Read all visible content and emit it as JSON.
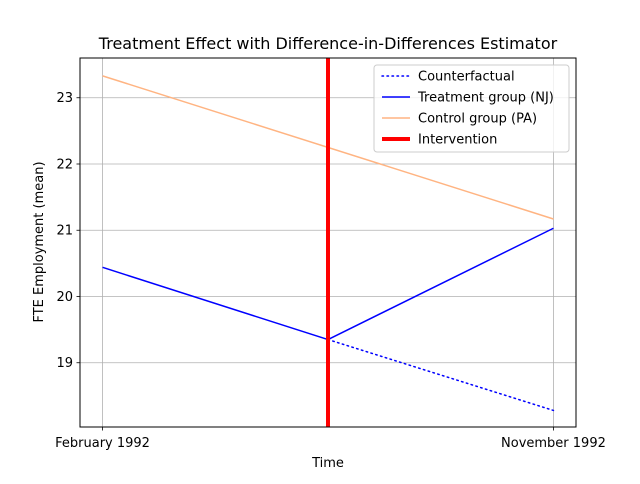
{
  "chart_data": {
    "type": "line",
    "title": "Treatment Effect with Difference-in-Differences Estimator",
    "xlabel": "Time",
    "ylabel": "FTE Employment (mean)",
    "x_categories": [
      "February 1992",
      "November 1992"
    ],
    "x_range": [
      -0.05,
      1.05
    ],
    "ylim": [
      18.03,
      23.6
    ],
    "yticks": [
      19,
      20,
      21,
      22,
      23
    ],
    "grid": true,
    "legend_position": "upper right",
    "intervention_x": 0.5,
    "series": [
      {
        "name": "Counterfactual",
        "style": "dotted",
        "color": "#0000ff",
        "x": [
          0.5,
          1
        ],
        "y": [
          19.35,
          18.28
        ]
      },
      {
        "name": "Treatment group (NJ)",
        "style": "solid",
        "color": "#0000ff",
        "x": [
          0,
          0.5,
          1
        ],
        "y": [
          20.44,
          19.35,
          21.03
        ]
      },
      {
        "name": "Control group (PA)",
        "style": "solid",
        "color": "#ffb482",
        "x": [
          0,
          1
        ],
        "y": [
          23.33,
          21.17
        ]
      },
      {
        "name": "Intervention",
        "style": "vline",
        "color": "#ff0000"
      }
    ]
  }
}
